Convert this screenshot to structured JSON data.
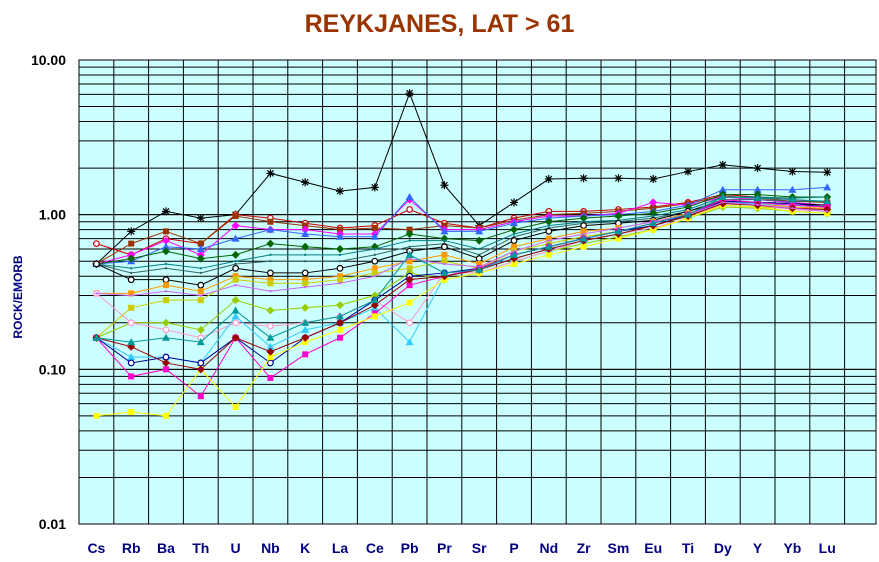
{
  "chart_data": {
    "type": "line",
    "title": "REYKJANES, LAT > 61",
    "xlabel": "",
    "ylabel": "ROCK/EMORB",
    "yscale": "log",
    "ylim": [
      0.01,
      10
    ],
    "ytick_labels": [
      "10.00",
      "1.00",
      "0.10",
      "0.01"
    ],
    "ytick_values": [
      10,
      1,
      0.1,
      0.01
    ],
    "grid": true,
    "background": "#ccffff",
    "categories": [
      "Cs",
      "Rb",
      "Ba",
      "Th",
      "U",
      "Nb",
      "K",
      "La",
      "Ce",
      "Pb",
      "Pr",
      "Sr",
      "P",
      "Nd",
      "Zr",
      "Sm",
      "Eu",
      "Ti",
      "Dy",
      "Y",
      "Yb",
      "Lu"
    ],
    "series": [
      {
        "color": "#000000",
        "marker": "star",
        "values": [
          0.48,
          0.78,
          1.05,
          0.95,
          1.0,
          1.85,
          1.62,
          1.42,
          1.5,
          6.1,
          1.55,
          0.85,
          1.2,
          1.7,
          1.72,
          1.72,
          1.7,
          1.9,
          2.1,
          2.0,
          1.9,
          1.88
        ]
      },
      {
        "color": "#cc0000",
        "marker": "circle",
        "values": [
          0.65,
          0.55,
          0.7,
          0.65,
          1.0,
          0.95,
          0.88,
          0.82,
          0.85,
          1.08,
          0.88,
          0.82,
          0.95,
          1.05,
          1.05,
          1.08,
          1.12,
          1.2,
          1.35,
          1.3,
          1.25,
          1.2
        ]
      },
      {
        "color": "#993300",
        "marker": "square",
        "values": [
          0.48,
          0.65,
          0.78,
          0.65,
          0.98,
          0.9,
          0.85,
          0.8,
          0.82,
          0.8,
          0.85,
          0.82,
          0.92,
          1.0,
          1.02,
          1.05,
          1.1,
          1.18,
          1.32,
          1.28,
          1.22,
          1.2
        ]
      },
      {
        "color": "#ff00ff",
        "marker": "diamond",
        "values": [
          0.48,
          0.55,
          0.68,
          0.55,
          0.85,
          0.8,
          0.8,
          0.75,
          0.75,
          1.25,
          0.8,
          0.8,
          0.9,
          0.98,
          0.98,
          1.02,
          1.2,
          1.15,
          1.3,
          1.25,
          1.2,
          1.15
        ]
      },
      {
        "color": "#3366ff",
        "marker": "triangle",
        "values": [
          0.48,
          0.5,
          0.62,
          0.6,
          0.7,
          0.8,
          0.75,
          0.72,
          0.72,
          1.3,
          0.78,
          0.78,
          0.88,
          0.95,
          0.98,
          1.0,
          1.05,
          1.15,
          1.45,
          1.45,
          1.45,
          1.5
        ]
      },
      {
        "color": "#006600",
        "marker": "diamond",
        "values": [
          0.48,
          0.52,
          0.58,
          0.52,
          0.55,
          0.65,
          0.62,
          0.6,
          0.62,
          0.75,
          0.7,
          0.68,
          0.8,
          0.9,
          0.95,
          0.98,
          1.02,
          1.12,
          1.35,
          1.35,
          1.3,
          1.3
        ]
      },
      {
        "color": "#008080",
        "marker": "none",
        "values": [
          0.48,
          0.45,
          0.48,
          0.45,
          0.5,
          0.55,
          0.55,
          0.55,
          0.6,
          0.68,
          0.68,
          0.6,
          0.75,
          0.85,
          0.9,
          0.92,
          0.98,
          1.08,
          1.3,
          1.3,
          1.28,
          1.3
        ]
      },
      {
        "color": "#336666",
        "marker": "none",
        "values": [
          0.48,
          0.42,
          0.45,
          0.42,
          0.48,
          0.5,
          0.5,
          0.5,
          0.55,
          0.62,
          0.65,
          0.55,
          0.72,
          0.82,
          0.88,
          0.9,
          0.95,
          1.05,
          1.25,
          1.25,
          1.22,
          1.22
        ]
      },
      {
        "color": "#000000",
        "marker": "circle",
        "values": [
          0.48,
          0.38,
          0.38,
          0.35,
          0.45,
          0.42,
          0.42,
          0.45,
          0.5,
          0.58,
          0.62,
          0.52,
          0.68,
          0.78,
          0.85,
          0.88,
          0.92,
          1.05,
          1.22,
          1.2,
          1.18,
          1.15
        ]
      },
      {
        "color": "#ff9900",
        "marker": "square",
        "values": [
          0.31,
          0.31,
          0.35,
          0.32,
          0.4,
          0.38,
          0.38,
          0.4,
          0.45,
          0.5,
          0.55,
          0.48,
          0.62,
          0.7,
          0.78,
          0.82,
          0.9,
          1.02,
          1.2,
          1.18,
          1.12,
          1.1
        ]
      },
      {
        "color": "#cccc00",
        "marker": "square",
        "values": [
          0.16,
          0.25,
          0.28,
          0.28,
          0.38,
          0.36,
          0.36,
          0.38,
          0.42,
          0.45,
          0.5,
          0.45,
          0.58,
          0.65,
          0.72,
          0.78,
          0.85,
          0.98,
          1.15,
          1.12,
          1.1,
          1.08
        ]
      },
      {
        "color": "#99cc00",
        "marker": "diamond",
        "values": [
          0.16,
          0.2,
          0.2,
          0.18,
          0.28,
          0.24,
          0.25,
          0.26,
          0.3,
          0.42,
          0.38,
          0.42,
          0.5,
          0.58,
          0.65,
          0.72,
          0.8,
          0.95,
          1.12,
          1.1,
          1.05,
          1.02
        ]
      },
      {
        "color": "#ff99cc",
        "marker": "circle",
        "values": [
          0.31,
          0.2,
          0.18,
          0.16,
          0.2,
          0.19,
          0.2,
          0.22,
          0.28,
          0.2,
          0.42,
          0.42,
          0.5,
          0.58,
          0.68,
          0.75,
          0.82,
          0.95,
          1.18,
          1.15,
          1.08,
          1.05
        ]
      },
      {
        "color": "#33ccff",
        "marker": "triangle",
        "values": [
          0.16,
          0.12,
          0.12,
          0.11,
          0.22,
          0.14,
          0.18,
          0.2,
          0.25,
          0.15,
          0.4,
          0.45,
          0.52,
          0.6,
          0.68,
          0.75,
          0.85,
          0.98,
          1.2,
          1.18,
          1.15,
          1.12
        ]
      },
      {
        "color": "#000099",
        "marker": "circle",
        "values": [
          0.16,
          0.11,
          0.12,
          0.11,
          0.16,
          0.11,
          0.16,
          0.2,
          0.28,
          0.4,
          0.42,
          0.45,
          0.55,
          0.62,
          0.7,
          0.78,
          0.85,
          1.0,
          1.22,
          1.2,
          1.18,
          1.12
        ]
      },
      {
        "color": "#ff00cc",
        "marker": "square",
        "values": [
          0.16,
          0.09,
          0.1,
          0.067,
          0.16,
          0.088,
          0.125,
          0.16,
          0.23,
          0.35,
          0.4,
          0.45,
          0.55,
          0.62,
          0.7,
          0.78,
          0.88,
          1.0,
          1.25,
          1.2,
          1.15,
          1.12
        ]
      },
      {
        "color": "#ffff00",
        "marker": "square",
        "values": [
          0.05,
          0.053,
          0.05,
          0.1,
          0.057,
          0.12,
          0.15,
          0.18,
          0.22,
          0.27,
          0.38,
          0.42,
          0.48,
          0.55,
          0.62,
          0.7,
          0.8,
          0.95,
          1.15,
          1.12,
          1.05,
          1.02
        ]
      },
      {
        "color": "#990000",
        "marker": "diamond",
        "values": [
          0.16,
          0.14,
          0.11,
          0.1,
          0.16,
          0.13,
          0.16,
          0.2,
          0.26,
          0.38,
          0.4,
          0.44,
          0.52,
          0.6,
          0.68,
          0.75,
          0.85,
          0.98,
          1.18,
          1.15,
          1.1,
          1.08
        ]
      },
      {
        "color": "#cc66ff",
        "marker": "none",
        "values": [
          0.31,
          0.3,
          0.32,
          0.3,
          0.35,
          0.32,
          0.34,
          0.36,
          0.4,
          0.52,
          0.48,
          0.46,
          0.58,
          0.68,
          0.75,
          0.82,
          0.9,
          1.0,
          1.2,
          1.16,
          1.1,
          1.05
        ]
      },
      {
        "color": "#009999",
        "marker": "triangle",
        "values": [
          0.16,
          0.15,
          0.16,
          0.15,
          0.24,
          0.16,
          0.2,
          0.22,
          0.28,
          0.55,
          0.42,
          0.44,
          0.55,
          0.62,
          0.7,
          0.78,
          0.88,
          1.0,
          1.3,
          1.28,
          1.25,
          1.22
        ]
      }
    ]
  }
}
